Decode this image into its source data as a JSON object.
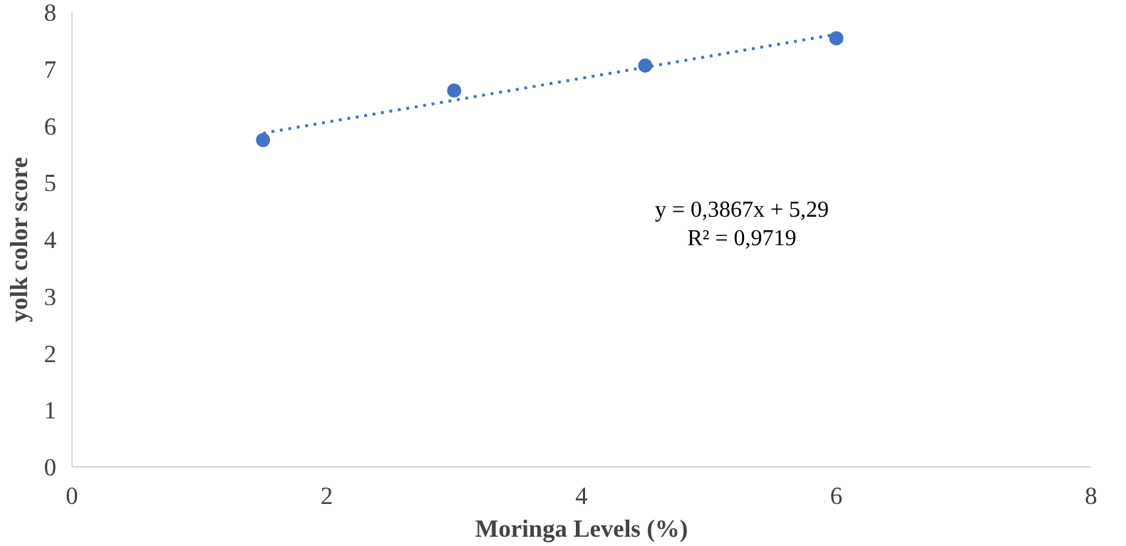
{
  "chart_data": {
    "type": "scatter",
    "xlabel": "Moringa Levels (%)",
    "ylabel": "yolk color score",
    "xlim": [
      0,
      8
    ],
    "ylim": [
      0,
      8
    ],
    "xticks": [
      0,
      2,
      4,
      6,
      8
    ],
    "yticks": [
      0,
      1,
      2,
      3,
      4,
      5,
      6,
      7,
      8
    ],
    "grid": false,
    "marker": "circle",
    "series": [
      {
        "color": "#4472c4",
        "x": [
          1.5,
          3,
          4.5,
          6
        ],
        "values": [
          5.75,
          6.62,
          7.06,
          7.54
        ]
      },
      {
        "type": "line",
        "color": "#4472c4",
        "line_style": "dotted",
        "marker": "none",
        "x": [
          1.5,
          6
        ],
        "values": [
          5.87,
          7.61
        ]
      }
    ],
    "annotations": [
      "y = 0,3867x + 5,29",
      "R² = 0,9719"
    ]
  }
}
